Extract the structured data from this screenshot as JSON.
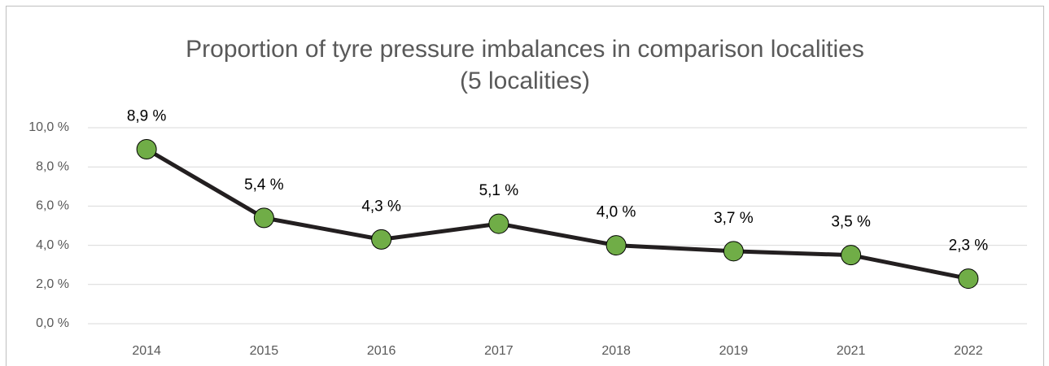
{
  "chart_data": {
    "type": "line",
    "title": "Proportion of tyre pressure imbalances in comparison localities",
    "subtitle": "(5 localities)",
    "categories": [
      "2014",
      "2015",
      "2016",
      "2017",
      "2018",
      "2019",
      "2021",
      "2022"
    ],
    "values": [
      8.9,
      5.4,
      4.3,
      5.1,
      4.0,
      3.7,
      3.5,
      2.3
    ],
    "value_labels": [
      "8,9 %",
      "5,4 %",
      "4,3 %",
      "5,1 %",
      "4,0 %",
      "3,7 %",
      "3,5 %",
      "2,3 %"
    ],
    "color": "#231f20",
    "marker_color": "#70ad47",
    "ylim": [
      0,
      10
    ],
    "yticks": [
      {
        "value": 0,
        "label": "0,0 %"
      },
      {
        "value": 2,
        "label": "2,0 %"
      },
      {
        "value": 4,
        "label": "4,0 %"
      },
      {
        "value": 6,
        "label": "6,0 %"
      },
      {
        "value": 8,
        "label": "8,0 %"
      },
      {
        "value": 10,
        "label": "10,0 %"
      }
    ],
    "grid": true
  }
}
